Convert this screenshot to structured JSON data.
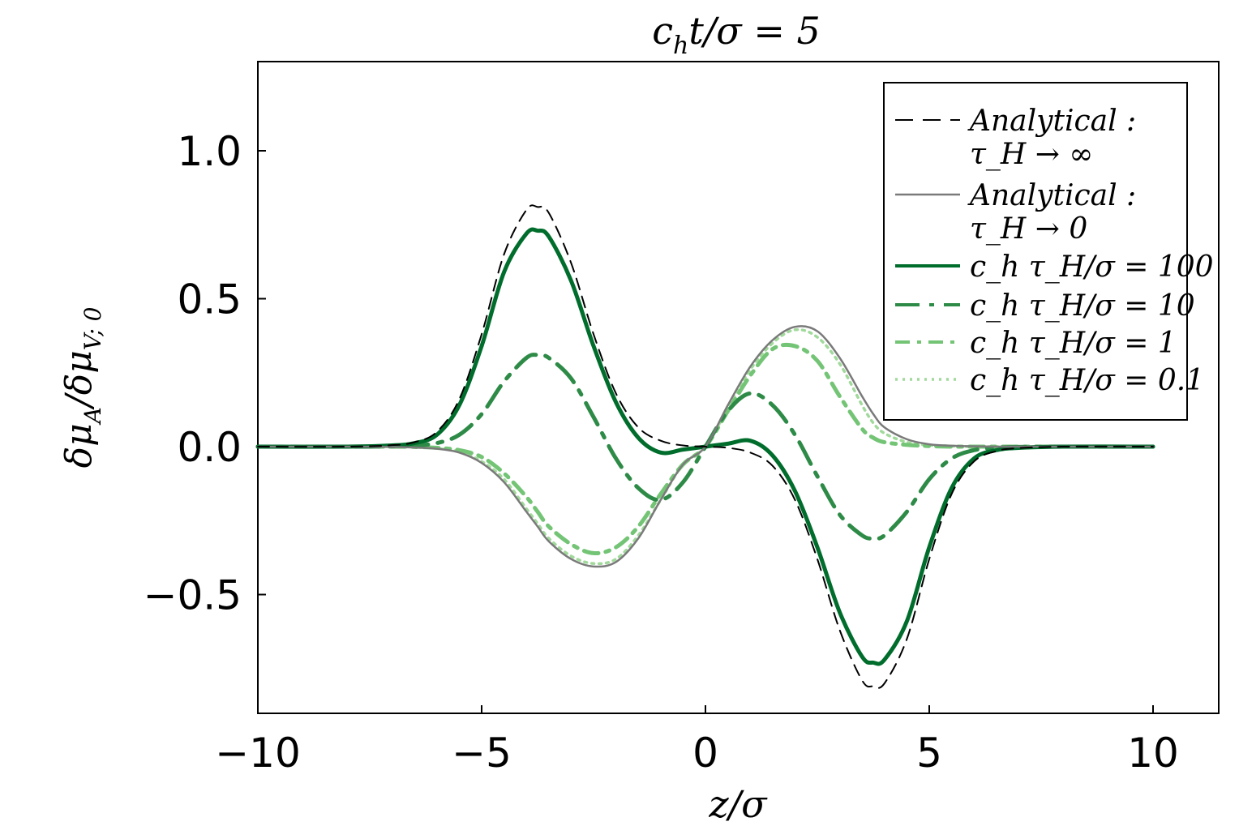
{
  "chart_data": {
    "type": "line",
    "title": "c_h t/σ = 5",
    "xlabel": "z/σ",
    "ylabel": "δμ_A/δμ_V;0",
    "xlim": [
      -10,
      11.5
    ],
    "ylim": [
      -0.9,
      1.3
    ],
    "xticks": [
      -10,
      -5,
      0,
      5,
      10
    ],
    "xtick_labels": [
      "−10",
      "−5",
      "0",
      "5",
      "10"
    ],
    "yticks": [
      -0.5,
      0.0,
      0.5,
      1.0
    ],
    "ytick_labels": [
      "−0.5",
      "0.0",
      "0.5",
      "1.0"
    ],
    "grid": false,
    "legend_position": "top-right",
    "colors": {
      "analytical_inf": "#000000",
      "analytical_zero": "#7a7a7a",
      "tau100": "#006d2c",
      "tau10": "#2e8b47",
      "tau1": "#74c476",
      "tau01": "#a1d99b"
    },
    "legend": [
      {
        "line1": "Analytical :",
        "line2": "τ_H → ∞",
        "color": "#000000",
        "dash": "long-dash"
      },
      {
        "line1": "Analytical :",
        "line2": "τ_H → 0",
        "color": "#7a7a7a",
        "dash": "solid"
      },
      {
        "line1": "c_h τ_H/σ = 100",
        "color": "#006d2c",
        "dash": "solid"
      },
      {
        "line1": "c_h τ_H/σ = 10",
        "color": "#2e8b47",
        "dash": "long-dash-dot"
      },
      {
        "line1": "c_h τ_H/σ = 1",
        "color": "#74c476",
        "dash": "dash-dot"
      },
      {
        "line1": "c_h τ_H/σ = 0.1",
        "color": "#a1d99b",
        "dash": "dot"
      }
    ],
    "x": [
      -10,
      -8,
      -7,
      -6.5,
      -6,
      -5.5,
      -5,
      -4.5,
      -4,
      -3.75,
      -3.5,
      -3,
      -2.5,
      -2,
      -1.5,
      -1,
      -0.5,
      0,
      0.5,
      1,
      1.5,
      2,
      2.5,
      3,
      3.5,
      3.75,
      4,
      4.5,
      5,
      5.5,
      6,
      6.5,
      7,
      8,
      10
    ],
    "series": [
      {
        "name": "Analytical : τ_H → ∞",
        "group": "pair",
        "values": [
          0.0,
          0.0,
          0.005,
          0.015,
          0.05,
          0.16,
          0.38,
          0.65,
          0.8,
          0.81,
          0.79,
          0.62,
          0.38,
          0.18,
          0.065,
          0.02,
          0.004,
          0.0,
          -0.004,
          -0.02,
          -0.065,
          -0.18,
          -0.38,
          -0.62,
          -0.79,
          -0.81,
          -0.8,
          -0.65,
          -0.38,
          -0.16,
          -0.05,
          -0.015,
          -0.005,
          0.0,
          0.0
        ]
      },
      {
        "name": "Analytical : τ_H → 0",
        "group": "pair",
        "values": [
          0.0,
          0.0,
          -0.001,
          -0.003,
          -0.007,
          -0.02,
          -0.055,
          -0.12,
          -0.22,
          -0.27,
          -0.32,
          -0.38,
          -0.405,
          -0.39,
          -0.31,
          -0.18,
          -0.06,
          0.0,
          0.14,
          0.27,
          0.36,
          0.405,
          0.39,
          0.3,
          0.17,
          0.11,
          0.065,
          0.025,
          0.008,
          0.003,
          0.001,
          0.0,
          0.0,
          0.0,
          0.0
        ]
      },
      {
        "name": "c_h τ_H/σ = 100",
        "group": "pair",
        "values": [
          0.0,
          0.0,
          0.004,
          0.012,
          0.04,
          0.14,
          0.34,
          0.59,
          0.72,
          0.73,
          0.71,
          0.56,
          0.34,
          0.15,
          0.03,
          -0.02,
          -0.01,
          0.0,
          0.01,
          0.02,
          -0.03,
          -0.15,
          -0.34,
          -0.56,
          -0.71,
          -0.73,
          -0.72,
          -0.59,
          -0.34,
          -0.14,
          -0.04,
          -0.012,
          -0.004,
          0.0,
          0.0
        ]
      },
      {
        "name": "c_h τ_H/σ = 10",
        "group": "pair",
        "values": [
          0.0,
          0.0,
          0.001,
          0.004,
          0.012,
          0.04,
          0.11,
          0.22,
          0.3,
          0.31,
          0.3,
          0.23,
          0.1,
          -0.04,
          -0.14,
          -0.18,
          -0.12,
          0.0,
          0.12,
          0.18,
          0.14,
          0.04,
          -0.1,
          -0.23,
          -0.3,
          -0.31,
          -0.3,
          -0.22,
          -0.11,
          -0.04,
          -0.012,
          -0.004,
          -0.001,
          0.0,
          0.0
        ]
      },
      {
        "name": "c_h τ_H/σ = 1",
        "group": "pair",
        "values": [
          0.0,
          0.0,
          0.0,
          -0.001,
          -0.004,
          -0.012,
          -0.035,
          -0.09,
          -0.17,
          -0.22,
          -0.27,
          -0.33,
          -0.36,
          -0.34,
          -0.27,
          -0.16,
          -0.06,
          0.0,
          0.12,
          0.24,
          0.33,
          0.34,
          0.29,
          0.17,
          0.06,
          0.03,
          0.015,
          0.006,
          0.002,
          0.0,
          0.0,
          0.0,
          0.0,
          0.0,
          0.0
        ]
      },
      {
        "name": "c_h τ_H/σ = 0.1",
        "group": "pair",
        "values": [
          0.0,
          0.0,
          0.0,
          -0.002,
          -0.006,
          -0.018,
          -0.05,
          -0.11,
          -0.21,
          -0.26,
          -0.31,
          -0.37,
          -0.395,
          -0.38,
          -0.3,
          -0.18,
          -0.06,
          0.0,
          0.13,
          0.26,
          0.35,
          0.395,
          0.37,
          0.28,
          0.14,
          0.08,
          0.045,
          0.015,
          0.005,
          0.002,
          0.0,
          0.0,
          0.0,
          0.0,
          0.0
        ]
      }
    ],
    "note_extra": {
      "title_parts": {
        "a": "c",
        "sub": "h",
        "b": "t/σ = 5"
      },
      "xlabel_parts": {
        "a": "z/σ"
      },
      "ylabel_parts": {
        "a": "δμ",
        "sub1": "A",
        "b": "/δμ",
        "sub2": "V; 0"
      }
    }
  }
}
